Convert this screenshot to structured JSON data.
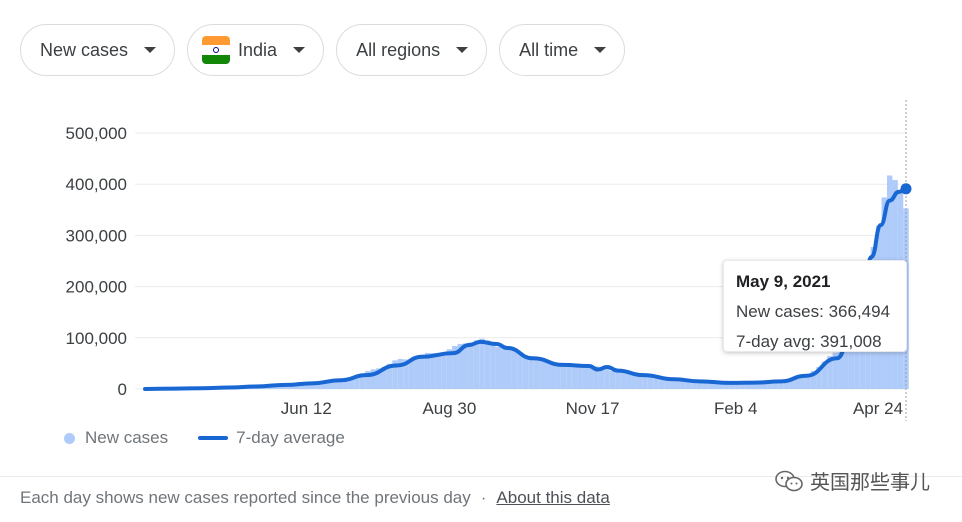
{
  "filters": {
    "metric": "New cases",
    "country": "India",
    "region": "All regions",
    "range": "All time"
  },
  "colors": {
    "bar": "#aecbfa",
    "line": "#1967d2",
    "grid": "#ebebeb",
    "flag_saffron": "#ff9933",
    "flag_white": "#ffffff",
    "flag_green": "#138808"
  },
  "tooltip": {
    "date": "May 9, 2021",
    "new_cases_line": "New cases: 366,494",
    "avg_line": "7-day avg: 391,008"
  },
  "legend": {
    "bars": "New cases",
    "line": "7-day average"
  },
  "footer": {
    "note": "Each day shows new cases reported since the previous day",
    "separator": "·",
    "link": "About this data"
  },
  "watermark": {
    "text": "英国那些事儿",
    "icon": "wechat-icon"
  },
  "chart_data": {
    "type": "bar",
    "ylim": [
      0,
      500000
    ],
    "y_ticks": [
      0,
      100000,
      200000,
      300000,
      400000,
      500000
    ],
    "y_tick_labels": [
      "0",
      "100,000",
      "200,000",
      "300,000",
      "400,000",
      "500,000"
    ],
    "x_tick_labels": [
      "Jun 12",
      "Aug 30",
      "Nov 17",
      "Feb 4",
      "Apr 24"
    ],
    "grid": true,
    "legend_position": "bottom-left",
    "series": [
      {
        "name": "New cases",
        "type": "bar",
        "dates": [
          "Mar 15",
          "Apr 1",
          "Apr 15",
          "May 1",
          "May 15",
          "Jun 1",
          "Jun 15",
          "Jul 1",
          "Jul 15",
          "Aug 1",
          "Aug 15",
          "Sep 1",
          "Sep 10",
          "Sep 16",
          "Oct 1",
          "Oct 15",
          "Nov 1",
          "Nov 15",
          "Dec 1",
          "Dec 15",
          "Jan 1",
          "Jan 15",
          "Feb 1",
          "Feb 15",
          "Mar 1",
          "Mar 15",
          "Apr 1",
          "Apr 10",
          "Apr 20",
          "Apr 30",
          "May 5",
          "May 9"
        ],
        "values": [
          100,
          1800,
          1100,
          2500,
          4200,
          8400,
          12000,
          19000,
          32000,
          55000,
          65000,
          78000,
          96000,
          95000,
          82000,
          62000,
          45000,
          45000,
          35000,
          27000,
          19000,
          16000,
          12000,
          12000,
          16000,
          26000,
          72000,
          152000,
          280000,
          398000,
          412000,
          366494
        ]
      },
      {
        "name": "7-day average",
        "type": "line",
        "dates": [
          "Mar 15",
          "Apr 1",
          "Apr 15",
          "May 1",
          "May 15",
          "Jun 1",
          "Jun 15",
          "Jul 1",
          "Jul 15",
          "Aug 1",
          "Aug 15",
          "Sep 1",
          "Sep 10",
          "Sep 16",
          "Sep 25",
          "Oct 1",
          "Oct 15",
          "Nov 1",
          "Nov 15",
          "Nov 20",
          "Nov 25",
          "Dec 1",
          "Dec 15",
          "Jan 1",
          "Jan 15",
          "Feb 1",
          "Feb 15",
          "Mar 1",
          "Mar 15",
          "Apr 1",
          "Apr 10",
          "Apr 15",
          "Apr 20",
          "Apr 25",
          "Apr 30",
          "May 5",
          "May 9"
        ],
        "values": [
          0,
          800,
          1500,
          3000,
          5000,
          8000,
          11000,
          17000,
          27000,
          46000,
          63000,
          70000,
          86000,
          92000,
          88000,
          80000,
          60000,
          47000,
          45000,
          38000,
          43000,
          36000,
          27000,
          19000,
          15000,
          12000,
          12500,
          15000,
          26000,
          60000,
          125000,
          188000,
          258000,
          320000,
          368000,
          385000,
          391008
        ]
      }
    ]
  }
}
